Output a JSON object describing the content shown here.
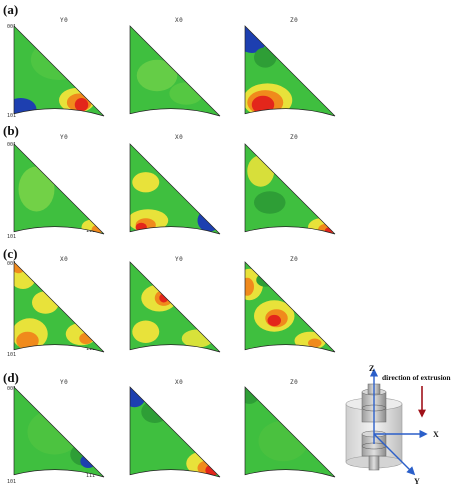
{
  "rows": [
    {
      "label": "(a)",
      "columns": [
        "Y0",
        "X0",
        "Z0"
      ]
    },
    {
      "label": "(b)",
      "columns": [
        "Y0",
        "X0",
        "Z0"
      ]
    },
    {
      "label": "(c)",
      "columns": [
        "X0",
        "Y0",
        "Z0"
      ]
    },
    {
      "label": "(d)",
      "columns": [
        "Y0",
        "X0",
        "Z0"
      ]
    }
  ],
  "corners": {
    "top": "001",
    "bottom_left": "101",
    "bottom_right": "111"
  },
  "diagram": {
    "axis_z": "Z",
    "axis_x": "X",
    "axis_y": "Y",
    "extrusion_label": "direction of extrusion"
  },
  "colors": {
    "green": "#3fbf3f",
    "green_dark": "#2e9e36",
    "yellow": "#e8e23a",
    "orange": "#f08a1c",
    "red": "#e3261b",
    "blue": "#1d3fb0",
    "axis_blue": "#2b5fc9",
    "arrow_red": "#a0121a"
  }
}
